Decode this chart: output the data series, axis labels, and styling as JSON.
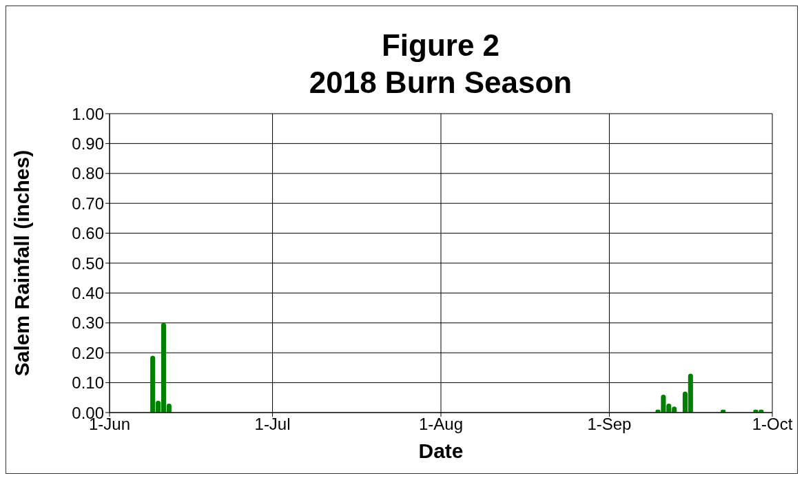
{
  "chart_data": {
    "type": "bar",
    "title": "Figure 2\n2018 Burn Season",
    "xlabel": "Date",
    "ylabel": "Salem Rainfall (inches)",
    "x": [
      "2018-06-09",
      "2018-06-10",
      "2018-06-11",
      "2018-06-12",
      "2018-09-10",
      "2018-09-11",
      "2018-09-12",
      "2018-09-13",
      "2018-09-15",
      "2018-09-16",
      "2018-09-22",
      "2018-09-28",
      "2018-09-29"
    ],
    "values": [
      0.19,
      0.04,
      0.3,
      0.03,
      0.01,
      0.06,
      0.03,
      0.02,
      0.07,
      0.13,
      0.01,
      0.01,
      0.01
    ],
    "color": "#008000",
    "xlim": [
      "2018-06-01",
      "2018-10-01"
    ],
    "xticks": [
      {
        "value": "2018-06-01",
        "label": "1-Jun"
      },
      {
        "value": "2018-07-01",
        "label": "1-Jul"
      },
      {
        "value": "2018-08-01",
        "label": "1-Aug"
      },
      {
        "value": "2018-09-01",
        "label": "1-Sep"
      },
      {
        "value": "2018-10-01",
        "label": "1-Oct"
      }
    ],
    "ylim": [
      0,
      1
    ],
    "yticks": [
      {
        "value": 0,
        "label": "0.00"
      },
      {
        "value": 0.1,
        "label": "0.10"
      },
      {
        "value": 0.2,
        "label": "0.20"
      },
      {
        "value": 0.3,
        "label": "0.30"
      },
      {
        "value": 0.4,
        "label": "0.40"
      },
      {
        "value": 0.5,
        "label": "0.50"
      },
      {
        "value": 0.6,
        "label": "0.60"
      },
      {
        "value": 0.7,
        "label": "0.70"
      },
      {
        "value": 0.8,
        "label": "0.80"
      },
      {
        "value": 0.9,
        "label": "0.90"
      },
      {
        "value": 1,
        "label": "1.00"
      }
    ],
    "grid": true
  }
}
